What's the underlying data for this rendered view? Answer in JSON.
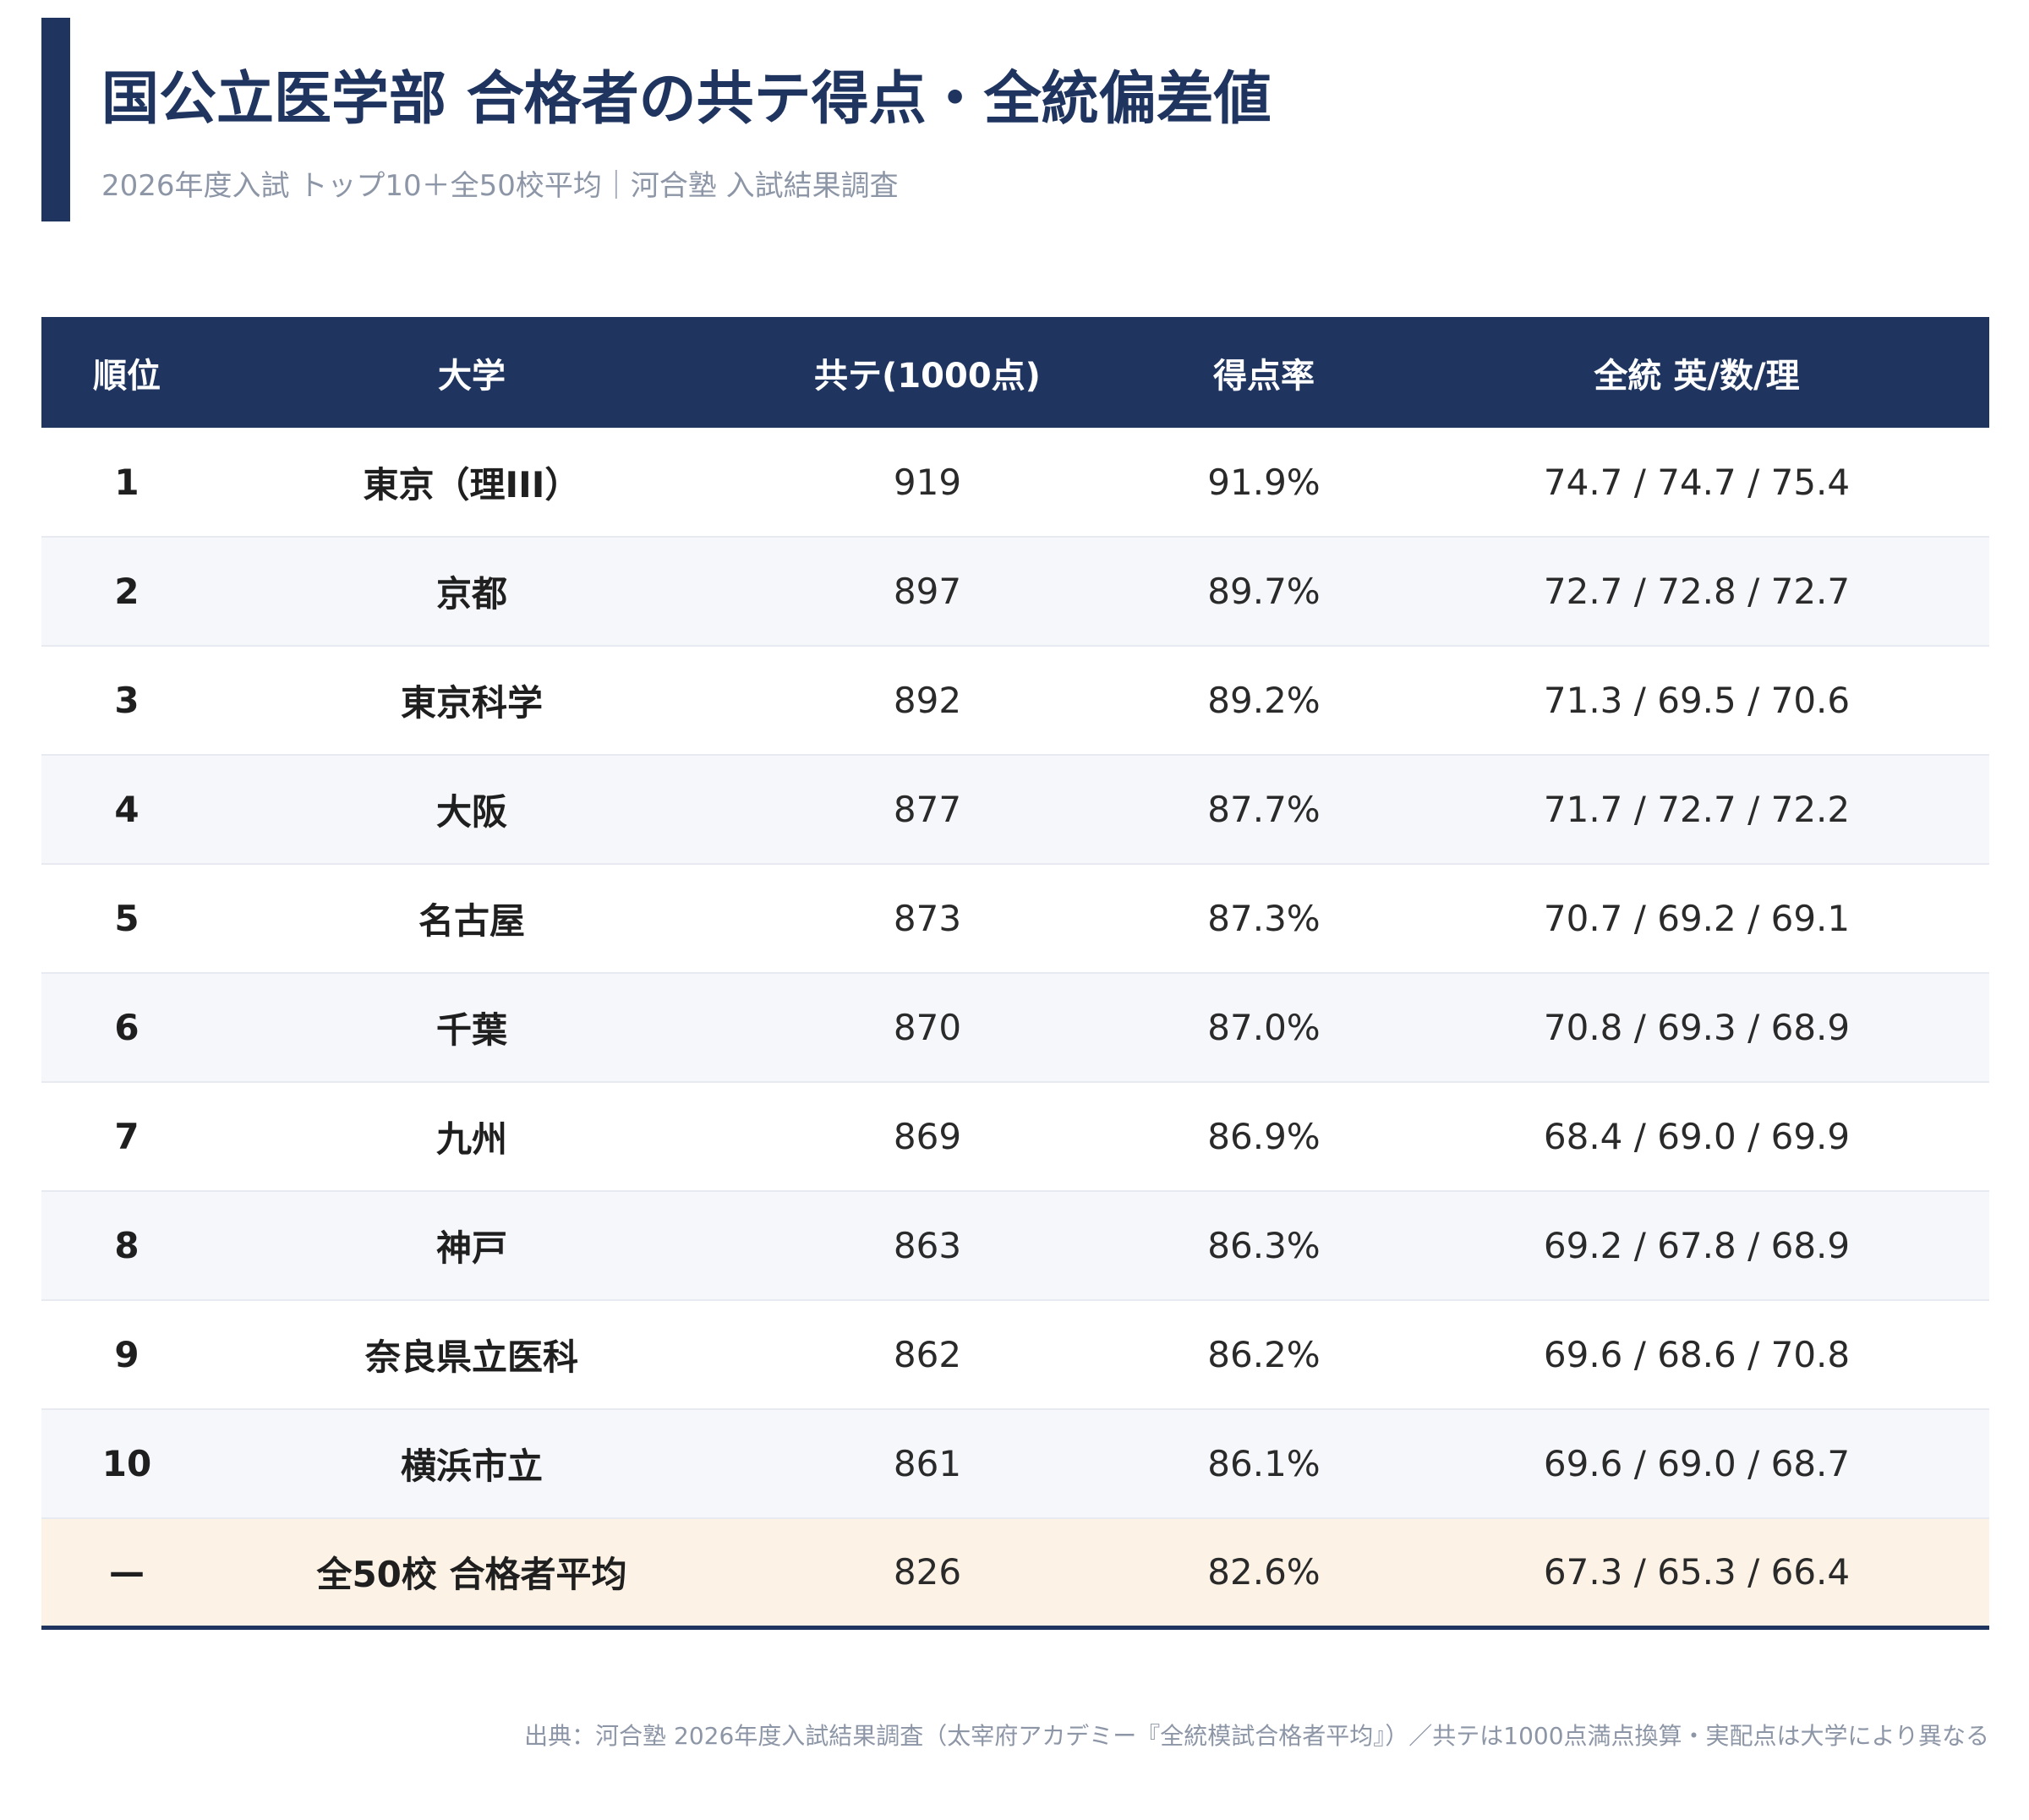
{
  "header": {
    "title": "国公立医学部 合格者の共テ得点・全統偏差値",
    "subtitle": "2026年度入試 トップ10＋全50校平均｜河合塾 入試結果調査"
  },
  "table": {
    "columns": [
      "順位",
      "大学",
      "共テ(1000点)",
      "得点率",
      "全統 英/数/理"
    ],
    "rows": [
      {
        "rank": "1",
        "university": "東京（理III）",
        "score": "919",
        "rate": "91.9%",
        "deviation": "74.7 / 74.7 / 75.4"
      },
      {
        "rank": "2",
        "university": "京都",
        "score": "897",
        "rate": "89.7%",
        "deviation": "72.7 / 72.8 / 72.7"
      },
      {
        "rank": "3",
        "university": "東京科学",
        "score": "892",
        "rate": "89.2%",
        "deviation": "71.3 / 69.5 / 70.6"
      },
      {
        "rank": "4",
        "university": "大阪",
        "score": "877",
        "rate": "87.7%",
        "deviation": "71.7 / 72.7 / 72.2"
      },
      {
        "rank": "5",
        "university": "名古屋",
        "score": "873",
        "rate": "87.3%",
        "deviation": "70.7 / 69.2 / 69.1"
      },
      {
        "rank": "6",
        "university": "千葉",
        "score": "870",
        "rate": "87.0%",
        "deviation": "70.8 / 69.3 / 68.9"
      },
      {
        "rank": "7",
        "university": "九州",
        "score": "869",
        "rate": "86.9%",
        "deviation": "68.4 / 69.0 / 69.9"
      },
      {
        "rank": "8",
        "university": "神戸",
        "score": "863",
        "rate": "86.3%",
        "deviation": "69.2 / 67.8 / 68.9"
      },
      {
        "rank": "9",
        "university": "奈良県立医科",
        "score": "862",
        "rate": "86.2%",
        "deviation": "69.6 / 68.6 / 70.8"
      },
      {
        "rank": "10",
        "university": "横浜市立",
        "score": "861",
        "rate": "86.1%",
        "deviation": "69.6 / 69.0 / 68.7"
      }
    ],
    "average": {
      "rank": "—",
      "university": "全50校 合格者平均",
      "score": "826",
      "rate": "82.6%",
      "deviation": "67.3 / 65.3 / 66.4"
    }
  },
  "footer": {
    "source": "出典：河合塾 2026年度入試結果調査（太宰府アカデミー『全統模試合格者平均』）／共テは1000点満点換算・実配点は大学により異なる"
  },
  "colors": {
    "navy": "#1f3560",
    "stripe": "#f5f7fb",
    "average_row": "#fcf3e6",
    "muted_text": "#8d96a6"
  }
}
